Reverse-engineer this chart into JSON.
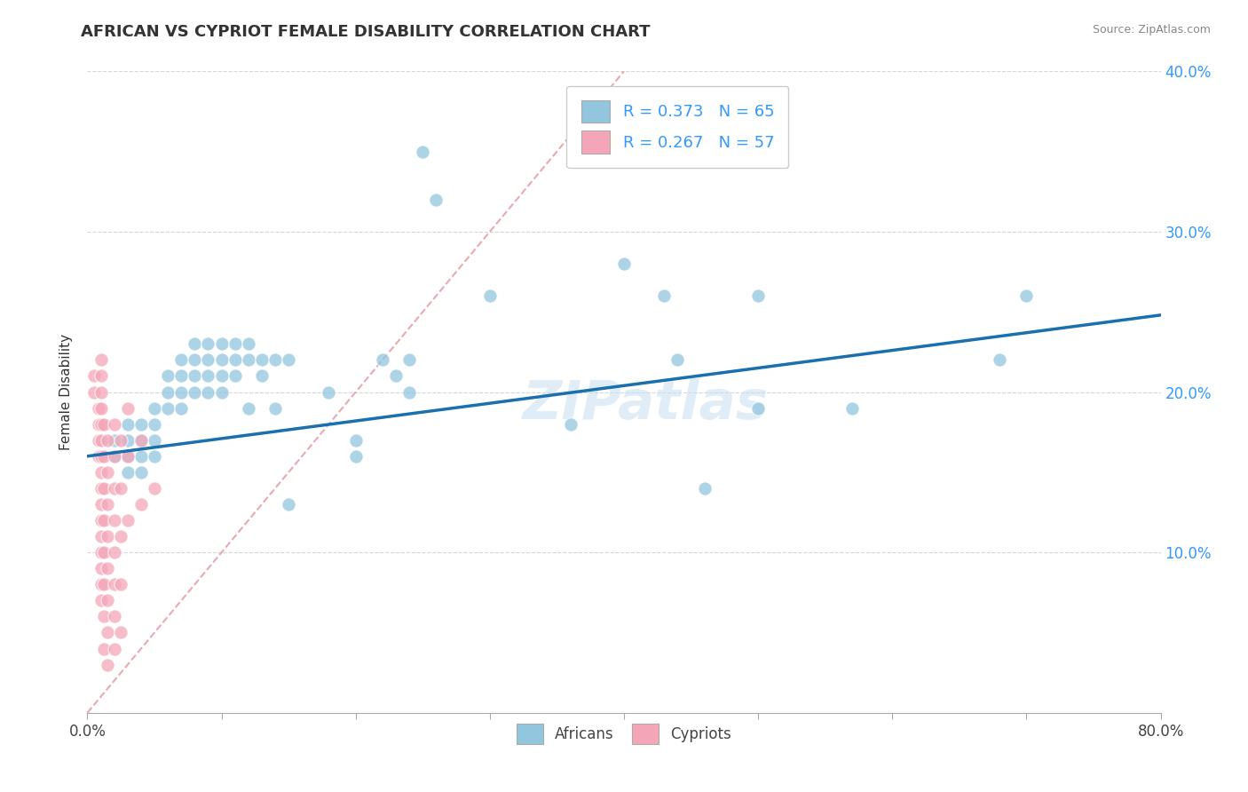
{
  "title": "AFRICAN VS CYPRIOT FEMALE DISABILITY CORRELATION CHART",
  "source": "Source: ZipAtlas.com",
  "ylabel": "Female Disability",
  "xlim": [
    0,
    0.8
  ],
  "ylim": [
    0,
    0.4
  ],
  "african_R": 0.373,
  "african_N": 65,
  "cypriot_R": 0.267,
  "cypriot_N": 57,
  "african_color": "#92c5de",
  "cypriot_color": "#f4a6b8",
  "trendline_color": "#1a6faf",
  "diagonal_color": "#e8a0a8",
  "background_color": "#ffffff",
  "grid_color": "#cccccc",
  "watermark": "ZIPatlas",
  "african_scatter": [
    [
      0.02,
      0.17
    ],
    [
      0.02,
      0.16
    ],
    [
      0.03,
      0.18
    ],
    [
      0.03,
      0.17
    ],
    [
      0.03,
      0.16
    ],
    [
      0.03,
      0.15
    ],
    [
      0.04,
      0.18
    ],
    [
      0.04,
      0.17
    ],
    [
      0.04,
      0.16
    ],
    [
      0.04,
      0.15
    ],
    [
      0.05,
      0.19
    ],
    [
      0.05,
      0.18
    ],
    [
      0.05,
      0.17
    ],
    [
      0.05,
      0.16
    ],
    [
      0.06,
      0.21
    ],
    [
      0.06,
      0.2
    ],
    [
      0.06,
      0.19
    ],
    [
      0.07,
      0.22
    ],
    [
      0.07,
      0.21
    ],
    [
      0.07,
      0.2
    ],
    [
      0.07,
      0.19
    ],
    [
      0.08,
      0.23
    ],
    [
      0.08,
      0.22
    ],
    [
      0.08,
      0.21
    ],
    [
      0.08,
      0.2
    ],
    [
      0.09,
      0.23
    ],
    [
      0.09,
      0.22
    ],
    [
      0.09,
      0.21
    ],
    [
      0.09,
      0.2
    ],
    [
      0.1,
      0.23
    ],
    [
      0.1,
      0.22
    ],
    [
      0.1,
      0.21
    ],
    [
      0.1,
      0.2
    ],
    [
      0.11,
      0.23
    ],
    [
      0.11,
      0.22
    ],
    [
      0.11,
      0.21
    ],
    [
      0.12,
      0.23
    ],
    [
      0.12,
      0.22
    ],
    [
      0.12,
      0.19
    ],
    [
      0.13,
      0.22
    ],
    [
      0.13,
      0.21
    ],
    [
      0.14,
      0.22
    ],
    [
      0.14,
      0.19
    ],
    [
      0.15,
      0.22
    ],
    [
      0.15,
      0.13
    ],
    [
      0.18,
      0.2
    ],
    [
      0.2,
      0.17
    ],
    [
      0.2,
      0.16
    ],
    [
      0.22,
      0.22
    ],
    [
      0.23,
      0.21
    ],
    [
      0.24,
      0.22
    ],
    [
      0.24,
      0.2
    ],
    [
      0.25,
      0.35
    ],
    [
      0.26,
      0.32
    ],
    [
      0.3,
      0.26
    ],
    [
      0.36,
      0.18
    ],
    [
      0.4,
      0.28
    ],
    [
      0.43,
      0.26
    ],
    [
      0.44,
      0.22
    ],
    [
      0.46,
      0.14
    ],
    [
      0.5,
      0.26
    ],
    [
      0.5,
      0.19
    ],
    [
      0.57,
      0.19
    ],
    [
      0.68,
      0.22
    ],
    [
      0.7,
      0.26
    ]
  ],
  "cypriot_scatter": [
    [
      0.005,
      0.21
    ],
    [
      0.005,
      0.2
    ],
    [
      0.008,
      0.19
    ],
    [
      0.008,
      0.18
    ],
    [
      0.008,
      0.17
    ],
    [
      0.008,
      0.16
    ],
    [
      0.01,
      0.22
    ],
    [
      0.01,
      0.21
    ],
    [
      0.01,
      0.2
    ],
    [
      0.01,
      0.19
    ],
    [
      0.01,
      0.18
    ],
    [
      0.01,
      0.17
    ],
    [
      0.01,
      0.16
    ],
    [
      0.01,
      0.15
    ],
    [
      0.01,
      0.14
    ],
    [
      0.01,
      0.13
    ],
    [
      0.01,
      0.12
    ],
    [
      0.01,
      0.11
    ],
    [
      0.01,
      0.1
    ],
    [
      0.01,
      0.09
    ],
    [
      0.01,
      0.08
    ],
    [
      0.01,
      0.07
    ],
    [
      0.012,
      0.18
    ],
    [
      0.012,
      0.16
    ],
    [
      0.012,
      0.14
    ],
    [
      0.012,
      0.12
    ],
    [
      0.012,
      0.1
    ],
    [
      0.012,
      0.08
    ],
    [
      0.012,
      0.06
    ],
    [
      0.012,
      0.04
    ],
    [
      0.015,
      0.17
    ],
    [
      0.015,
      0.15
    ],
    [
      0.015,
      0.13
    ],
    [
      0.015,
      0.11
    ],
    [
      0.015,
      0.09
    ],
    [
      0.015,
      0.07
    ],
    [
      0.015,
      0.05
    ],
    [
      0.015,
      0.03
    ],
    [
      0.02,
      0.18
    ],
    [
      0.02,
      0.16
    ],
    [
      0.02,
      0.14
    ],
    [
      0.02,
      0.12
    ],
    [
      0.02,
      0.1
    ],
    [
      0.02,
      0.08
    ],
    [
      0.02,
      0.06
    ],
    [
      0.02,
      0.04
    ],
    [
      0.025,
      0.17
    ],
    [
      0.025,
      0.14
    ],
    [
      0.025,
      0.11
    ],
    [
      0.025,
      0.08
    ],
    [
      0.025,
      0.05
    ],
    [
      0.03,
      0.19
    ],
    [
      0.03,
      0.16
    ],
    [
      0.03,
      0.12
    ],
    [
      0.04,
      0.17
    ],
    [
      0.04,
      0.13
    ],
    [
      0.05,
      0.14
    ]
  ],
  "trendline_x": [
    0.0,
    0.8
  ],
  "trendline_y": [
    0.16,
    0.248
  ]
}
